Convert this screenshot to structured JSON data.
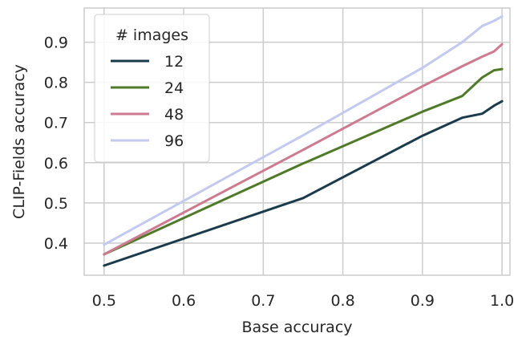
{
  "chart_data": {
    "type": "line",
    "xlabel": "Base accuracy",
    "ylabel": "CLIP-Fields accuracy",
    "xlim": [
      0.475,
      1.01
    ],
    "ylim": [
      0.32,
      0.985
    ],
    "xticks": [
      0.5,
      0.6,
      0.7,
      0.8,
      0.9,
      1.0
    ],
    "xtick_labels": [
      "0.5",
      "0.6",
      "0.7",
      "0.8",
      "0.9",
      "1.0"
    ],
    "yticks": [
      0.4,
      0.5,
      0.6,
      0.7,
      0.8,
      0.9
    ],
    "ytick_labels": [
      "0.4",
      "0.5",
      "0.6",
      "0.7",
      "0.8",
      "0.9"
    ],
    "grid": true,
    "legend": {
      "title": "# images",
      "position": "top-left"
    },
    "series": [
      {
        "name": "12",
        "color": "#1b3b4b",
        "x": [
          0.5,
          0.75,
          0.9,
          0.95,
          0.975,
          0.99,
          1.0
        ],
        "y": [
          0.344,
          0.512,
          0.667,
          0.712,
          0.722,
          0.742,
          0.753
        ]
      },
      {
        "name": "24",
        "color": "#4f7a28",
        "x": [
          0.5,
          0.75,
          0.9,
          0.95,
          0.975,
          0.99,
          1.0
        ],
        "y": [
          0.372,
          0.598,
          0.727,
          0.766,
          0.812,
          0.83,
          0.833
        ]
      },
      {
        "name": "48",
        "color": "#cc7b91",
        "x": [
          0.5,
          0.75,
          0.9,
          0.95,
          0.975,
          0.99,
          1.0
        ],
        "y": [
          0.372,
          0.632,
          0.79,
          0.84,
          0.864,
          0.877,
          0.895
        ]
      },
      {
        "name": "96",
        "color": "#c3c9ef",
        "x": [
          0.5,
          0.75,
          0.9,
          0.95,
          0.975,
          0.99,
          1.0
        ],
        "y": [
          0.396,
          0.668,
          0.836,
          0.9,
          0.94,
          0.953,
          0.964
        ]
      }
    ]
  }
}
